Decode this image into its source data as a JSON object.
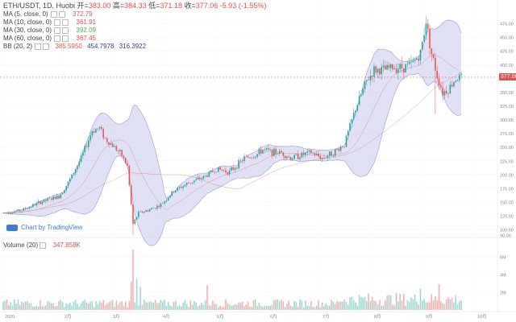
{
  "header": {
    "symbol": "ETH/USDT, 1D, Huobi",
    "open_label": "开=",
    "open": "383.00",
    "high_label": "高=",
    "high": "384.33",
    "low_label": "低=",
    "low": "371.18",
    "close_label": "收=",
    "close": "377.06",
    "change": "-5.93 (-1.55%)"
  },
  "indicators": [
    {
      "label": "MA (5, close, 0)",
      "value": "372.79",
      "color": "#e05050"
    },
    {
      "label": "MA (10, close, 0)",
      "value": "361.91",
      "color": "#e05050"
    },
    {
      "label": "MA (30, close, 0)",
      "value": "392.09",
      "color": "#4caf50"
    },
    {
      "label": "MA (60, close, 0)",
      "value": "367.45",
      "color": "#e05050"
    }
  ],
  "bb": {
    "label": "BB (20, 2)",
    "v1": "385.5950",
    "v2": "454.7978",
    "v3": "316.3922",
    "c1": "#e05050",
    "c2": "#3a3aa0",
    "c3": "#3a3aa0"
  },
  "tv_badge": "Chart by TradingView",
  "volume": {
    "label": "Volume (20)",
    "value": "347.858K"
  },
  "last_price": "377.06",
  "colors": {
    "up": "#26a69a",
    "down": "#ef5350",
    "band": "#c8c8ec",
    "band_line": "#9a9ad8",
    "ma": "#e08080"
  },
  "chart_data": {
    "type": "candlestick",
    "price_axis": {
      "min": 90,
      "max": 500,
      "ticks": [
        "475.00",
        "450.00",
        "425.00",
        "400.00",
        "375.00",
        "350.00",
        "325.00",
        "300.00",
        "275.00",
        "250.00",
        "225.00",
        "200.00",
        "175.00",
        "150.00",
        "125.00",
        "100.00",
        "90.00"
      ]
    },
    "volume_axis": {
      "max": 7000000,
      "ticks": [
        "6M",
        "4M",
        "2M"
      ]
    },
    "x_labels": [
      "2020",
      "2月",
      "3月",
      "4月",
      "5月",
      "6月",
      "7月",
      "8月",
      "9月",
      "10月"
    ],
    "price_keypoints": [
      [
        0,
        130
      ],
      [
        10,
        135
      ],
      [
        20,
        150
      ],
      [
        30,
        160
      ],
      [
        35,
        185
      ],
      [
        42,
        230
      ],
      [
        48,
        280
      ],
      [
        52,
        285
      ],
      [
        55,
        265
      ],
      [
        60,
        250
      ],
      [
        64,
        235
      ],
      [
        67,
        215
      ],
      [
        70,
        110
      ],
      [
        73,
        130
      ],
      [
        78,
        135
      ],
      [
        85,
        145
      ],
      [
        92,
        170
      ],
      [
        100,
        185
      ],
      [
        108,
        195
      ],
      [
        115,
        210
      ],
      [
        122,
        205
      ],
      [
        130,
        230
      ],
      [
        136,
        235
      ],
      [
        140,
        245
      ],
      [
        146,
        240
      ],
      [
        150,
        240
      ],
      [
        155,
        230
      ],
      [
        160,
        235
      ],
      [
        166,
        240
      ],
      [
        172,
        230
      ],
      [
        178,
        240
      ],
      [
        184,
        255
      ],
      [
        190,
        320
      ],
      [
        196,
        370
      ],
      [
        200,
        390
      ],
      [
        205,
        390
      ],
      [
        210,
        395
      ],
      [
        215,
        395
      ],
      [
        220,
        400
      ],
      [
        225,
        420
      ],
      [
        228,
        480
      ],
      [
        231,
        420
      ],
      [
        234,
        380
      ],
      [
        237,
        350
      ],
      [
        240,
        355
      ],
      [
        244,
        375
      ],
      [
        247,
        377
      ]
    ],
    "volume_spikes": [
      [
        70,
        6.8
      ],
      [
        72,
        3.5
      ],
      [
        69,
        3.2
      ],
      [
        74,
        2.6
      ],
      [
        110,
        2.8
      ],
      [
        235,
        2.9
      ],
      [
        225,
        2.4
      ]
    ]
  }
}
